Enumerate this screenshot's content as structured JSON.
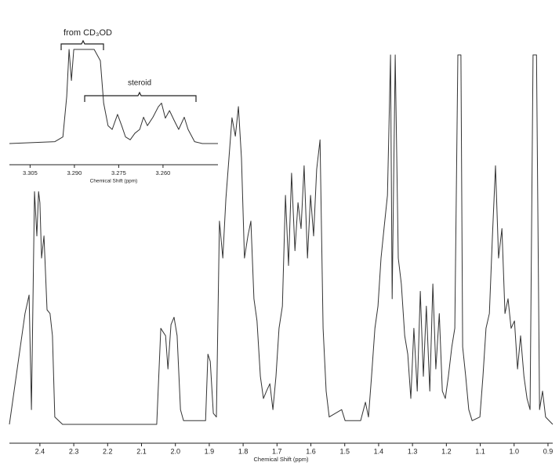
{
  "chart_data": [
    {
      "type": "line",
      "x_label": "Chemical Shift (ppm)",
      "x": [
        2.49,
        2.444,
        2.432,
        2.425,
        2.416,
        2.409,
        2.404,
        2.4,
        2.395,
        2.388,
        2.379,
        2.37,
        2.363,
        2.356,
        2.333,
        2.055,
        2.043,
        2.036,
        2.029,
        2.022,
        2.013,
        2.004,
        1.995,
        1.985,
        1.976,
        1.911,
        1.904,
        1.897,
        1.888,
        1.879,
        1.87,
        1.86,
        1.851,
        1.842,
        1.833,
        1.823,
        1.814,
        1.805,
        1.796,
        1.786,
        1.777,
        1.768,
        1.759,
        1.749,
        1.74,
        1.731,
        1.721,
        1.712,
        1.703,
        1.694,
        1.684,
        1.675,
        1.666,
        1.657,
        1.647,
        1.638,
        1.629,
        1.62,
        1.61,
        1.601,
        1.592,
        1.583,
        1.573,
        1.564,
        1.555,
        1.546,
        1.509,
        1.499,
        1.453,
        1.439,
        1.43,
        1.421,
        1.411,
        1.402,
        1.393,
        1.384,
        1.374,
        1.365,
        1.36,
        1.351,
        1.342,
        1.333,
        1.323,
        1.314,
        1.305,
        1.296,
        1.286,
        1.277,
        1.268,
        1.259,
        1.249,
        1.24,
        1.231,
        1.221,
        1.212,
        1.203,
        1.194,
        1.184,
        1.175,
        1.166,
        1.157,
        1.152,
        1.143,
        1.134,
        1.124,
        1.101,
        1.092,
        1.083,
        1.073,
        1.064,
        1.055,
        1.046,
        1.036,
        1.027,
        1.018,
        1.009,
        0.999,
        0.99,
        0.981,
        0.971,
        0.962,
        0.953,
        0.944,
        0.934,
        0.925,
        0.916,
        0.907,
        0.886
      ],
      "series": [
        {
          "color": "#333333",
          "values": [
            0,
            30,
            35,
            4,
            63,
            51,
            63,
            60,
            45,
            51,
            31,
            30,
            24,
            2,
            0,
            0,
            26,
            25,
            24,
            15,
            27,
            29,
            24,
            4,
            1,
            1,
            19,
            17,
            3,
            2,
            55,
            45,
            61,
            72,
            83,
            78,
            86,
            72,
            45,
            51,
            55,
            34,
            28,
            13,
            7,
            9,
            11,
            4,
            13,
            26,
            32,
            62,
            43,
            68,
            47,
            60,
            53,
            70,
            45,
            62,
            51,
            69,
            77,
            26,
            9,
            2,
            4,
            1,
            1,
            6,
            2,
            13,
            26,
            32,
            45,
            53,
            62,
            100,
            34,
            100,
            45,
            38,
            24,
            19,
            7,
            26,
            9,
            36,
            13,
            32,
            9,
            38,
            15,
            30,
            9,
            7,
            13,
            21,
            26,
            100,
            100,
            21,
            13,
            4,
            1,
            2,
            13,
            26,
            30,
            51,
            70,
            45,
            53,
            30,
            34,
            26,
            28,
            15,
            24,
            13,
            7,
            4,
            100,
            100,
            4,
            9,
            2,
            0
          ]
        }
      ],
      "xlim": [
        2.49,
        0.886
      ],
      "ylim": [
        0,
        100
      ],
      "xticks": [
        2.4,
        2.3,
        2.2,
        2.1,
        {
          "value": 2,
          "label": "2.0"
        },
        1.9,
        1.8,
        1.7,
        1.6,
        1.5,
        1.4,
        1.3,
        1.2,
        1.1,
        {
          "value": 1,
          "label": "1.0"
        },
        0.9
      ]
    },
    {
      "type": "line",
      "x_label": "Chemical Shift (ppm)",
      "annotations": [
        "from CD₃OD",
        "steroid"
      ],
      "x": [
        3.312,
        3.2966,
        3.2939,
        3.2926,
        3.2918,
        3.291,
        3.2902,
        3.2866,
        3.2833,
        3.2812,
        3.2801,
        3.2786,
        3.2772,
        3.2754,
        3.274,
        3.2727,
        3.2711,
        3.2695,
        3.2679,
        3.2666,
        3.2653,
        3.2634,
        3.2616,
        3.2605,
        3.2592,
        3.2578,
        3.2563,
        3.2547,
        3.2528,
        3.2515,
        3.2493,
        3.2467,
        3.2414
      ],
      "series": [
        {
          "color": "#333333",
          "values": [
            0,
            2,
            7,
            50,
            100,
            67,
            100,
            100,
            100,
            88,
            43,
            19,
            15,
            31,
            19,
            7,
            4,
            11,
            15,
            28,
            19,
            28,
            39,
            43,
            27,
            35,
            25,
            15,
            28,
            15,
            2,
            0,
            0
          ]
        }
      ],
      "xlim": [
        3.312,
        3.2414
      ],
      "ylim": [
        0,
        100
      ],
      "xticks": [
        3.305,
        {
          "value": 3.29,
          "label": "3.290"
        },
        3.275,
        {
          "value": 3.26,
          "label": "3.260"
        }
      ]
    }
  ]
}
